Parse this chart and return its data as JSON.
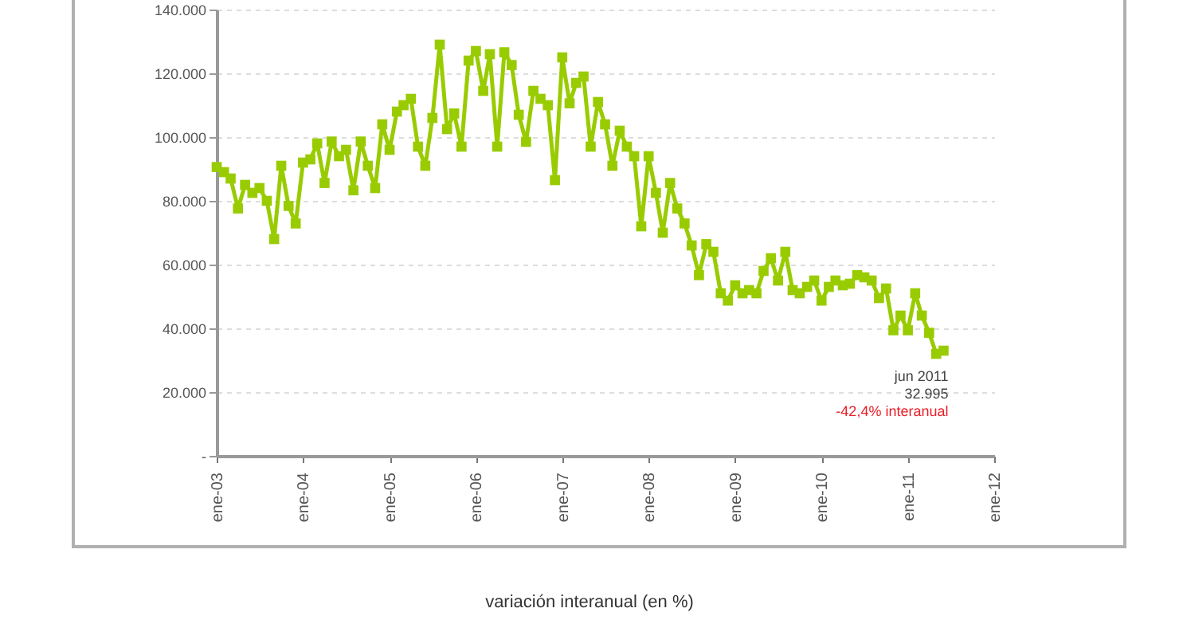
{
  "chart_data": {
    "type": "line",
    "x": [
      "2003-01",
      "2003-02",
      "2003-03",
      "2003-04",
      "2003-05",
      "2003-06",
      "2003-07",
      "2003-08",
      "2003-09",
      "2003-10",
      "2003-11",
      "2003-12",
      "2004-01",
      "2004-02",
      "2004-03",
      "2004-04",
      "2004-05",
      "2004-06",
      "2004-07",
      "2004-08",
      "2004-09",
      "2004-10",
      "2004-11",
      "2004-12",
      "2005-01",
      "2005-02",
      "2005-03",
      "2005-04",
      "2005-05",
      "2005-06",
      "2005-07",
      "2005-08",
      "2005-09",
      "2005-10",
      "2005-11",
      "2005-12",
      "2006-01",
      "2006-02",
      "2006-03",
      "2006-04",
      "2006-05",
      "2006-06",
      "2006-07",
      "2006-08",
      "2006-09",
      "2006-10",
      "2006-11",
      "2006-12",
      "2007-01",
      "2007-02",
      "2007-03",
      "2007-04",
      "2007-05",
      "2007-06",
      "2007-07",
      "2007-08",
      "2007-09",
      "2007-10",
      "2007-11",
      "2007-12",
      "2008-01",
      "2008-02",
      "2008-03",
      "2008-04",
      "2008-05",
      "2008-06",
      "2008-07",
      "2008-08",
      "2008-09",
      "2008-10",
      "2008-11",
      "2008-12",
      "2009-01",
      "2009-02",
      "2009-03",
      "2009-04",
      "2009-05",
      "2009-06",
      "2009-07",
      "2009-08",
      "2009-09",
      "2009-10",
      "2009-11",
      "2009-12",
      "2010-01",
      "2010-02",
      "2010-03",
      "2010-04",
      "2010-05",
      "2010-06",
      "2010-07",
      "2010-08",
      "2010-09",
      "2010-10",
      "2010-11",
      "2010-12",
      "2011-01",
      "2011-02",
      "2011-03",
      "2011-04",
      "2011-05",
      "2011-06"
    ],
    "series": [
      {
        "color": "#99cc00",
        "values": [
          90600,
          89000,
          87000,
          77600,
          85000,
          82500,
          84000,
          80000,
          68000,
          91000,
          78400,
          72900,
          92000,
          93000,
          98000,
          85600,
          98600,
          94000,
          96000,
          83300,
          98600,
          91000,
          84000,
          104000,
          96000,
          108000,
          110000,
          112000,
          97000,
          91000,
          106000,
          129000,
          102500,
          107400,
          97000,
          124000,
          127000,
          114500,
          126000,
          97000,
          126600,
          122600,
          107000,
          98500,
          114500,
          112000,
          110000,
          86500,
          125000,
          110600,
          117000,
          119000,
          97000,
          111000,
          104000,
          91000,
          102000,
          97000,
          94000,
          72000,
          94000,
          82500,
          70000,
          85600,
          77600,
          72900,
          66000,
          56700,
          66400,
          64000,
          51000,
          48700,
          53500,
          51000,
          52000,
          51000,
          58000,
          62000,
          55000,
          64000,
          52000,
          51000,
          53000,
          55000,
          48700,
          53000,
          55000,
          53500,
          54000,
          56700,
          56000,
          55000,
          49500,
          52500,
          39400,
          44000,
          39400,
          51000,
          44000,
          38600,
          32000,
          32995
        ]
      }
    ],
    "xlim": [
      "2003-01",
      "2012-01"
    ],
    "xticks": [
      {
        "value": "2003-01",
        "label": "ene-03"
      },
      {
        "value": "2004-01",
        "label": "ene-04"
      },
      {
        "value": "2005-01",
        "label": "ene-05"
      },
      {
        "value": "2006-01",
        "label": "ene-06"
      },
      {
        "value": "2007-01",
        "label": "ene-07"
      },
      {
        "value": "2008-01",
        "label": "ene-08"
      },
      {
        "value": "2009-01",
        "label": "ene-09"
      },
      {
        "value": "2010-01",
        "label": "ene-10"
      },
      {
        "value": "2011-01",
        "label": "ene-11"
      },
      {
        "value": "2012-01",
        "label": "ene-12"
      }
    ],
    "ylim": [
      0,
      140000
    ],
    "yticks": [
      {
        "value": 0,
        "label": "-"
      },
      {
        "value": 20000,
        "label": "20.000"
      },
      {
        "value": 40000,
        "label": "40.000"
      },
      {
        "value": 60000,
        "label": "60.000"
      },
      {
        "value": 80000,
        "label": "80.000"
      },
      {
        "value": 100000,
        "label": "100.000"
      },
      {
        "value": 120000,
        "label": "120.000"
      },
      {
        "value": 140000,
        "label": "140.000"
      }
    ],
    "grid": "y",
    "marker": "square",
    "line_style": "solid",
    "annotations": [
      {
        "text": "jun 2011",
        "x": "2011-06",
        "y": 32995
      },
      "32.995",
      "-42,4% interanual",
      "variación interanual (en %)"
    ]
  }
}
